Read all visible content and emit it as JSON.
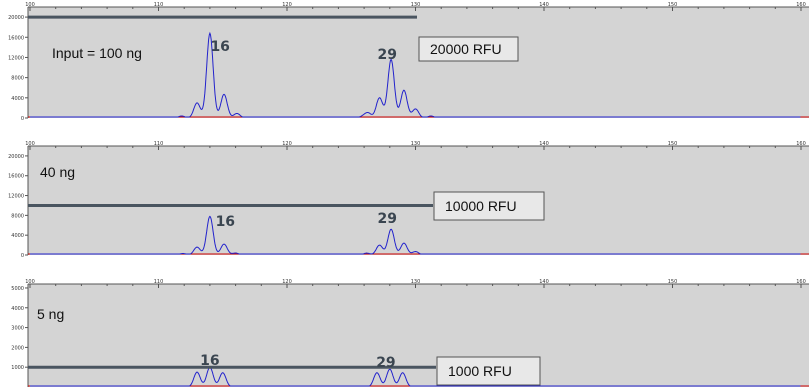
{
  "chart_data": [
    {
      "type": "line",
      "panel_label": "Input = 100 ng",
      "threshold_label": "20000 RFU",
      "threshold_value": 20000,
      "xlim": [
        100,
        160
      ],
      "ylim": [
        0,
        22000
      ],
      "x_ticks": [
        100,
        110,
        120,
        130,
        140,
        150,
        160
      ],
      "y_ticks": [
        0,
        4000,
        8000,
        12000,
        16000,
        20000
      ],
      "peak_labels": [
        {
          "text": "16",
          "x": 114.8
        },
        {
          "text": "29",
          "x": 127.8
        }
      ],
      "peaks": [
        {
          "x": 111.8,
          "y": 400
        },
        {
          "x": 113.0,
          "y": 3000
        },
        {
          "x": 114.0,
          "y": 16800
        },
        {
          "x": 115.1,
          "y": 4700
        },
        {
          "x": 116.1,
          "y": 900
        },
        {
          "x": 125.9,
          "y": 300
        },
        {
          "x": 126.3,
          "y": 1000
        },
        {
          "x": 127.2,
          "y": 4000
        },
        {
          "x": 128.1,
          "y": 11600
        },
        {
          "x": 129.1,
          "y": 5500
        },
        {
          "x": 130.0,
          "y": 1800
        },
        {
          "x": 131.2,
          "y": 400
        }
      ]
    },
    {
      "type": "line",
      "panel_label": "40 ng",
      "threshold_label": "10000 RFU",
      "threshold_value": 10000,
      "xlim": [
        100,
        160
      ],
      "ylim": [
        0,
        22000
      ],
      "x_ticks": [
        100,
        110,
        120,
        130,
        140,
        150,
        160
      ],
      "y_ticks": [
        0,
        4000,
        8000,
        12000,
        16000,
        20000
      ],
      "peak_labels": [
        {
          "text": "16",
          "x": 115.2
        },
        {
          "text": "29",
          "x": 127.8
        }
      ],
      "peaks": [
        {
          "x": 111.9,
          "y": 300
        },
        {
          "x": 113.0,
          "y": 1600
        },
        {
          "x": 114.0,
          "y": 7800
        },
        {
          "x": 115.1,
          "y": 2200
        },
        {
          "x": 116.0,
          "y": 400
        },
        {
          "x": 126.2,
          "y": 400
        },
        {
          "x": 127.2,
          "y": 2000
        },
        {
          "x": 128.1,
          "y": 5200
        },
        {
          "x": 129.1,
          "y": 2400
        },
        {
          "x": 130.0,
          "y": 700
        }
      ]
    },
    {
      "type": "line",
      "panel_label": "5 ng",
      "threshold_label": "1000 RFU",
      "threshold_value": 1000,
      "xlim": [
        100,
        160
      ],
      "ylim": [
        0,
        5200
      ],
      "x_ticks": [
        100,
        110,
        120,
        130,
        140,
        150,
        160
      ],
      "y_ticks": [
        1000,
        2000,
        3000,
        4000,
        5000
      ],
      "peak_labels": [
        {
          "text": "16",
          "x": 114.0
        },
        {
          "text": "29",
          "x": 127.7
        }
      ],
      "peaks": [
        {
          "x": 113.0,
          "y": 750
        },
        {
          "x": 114.0,
          "y": 1000
        },
        {
          "x": 115.0,
          "y": 720
        },
        {
          "x": 127.0,
          "y": 720
        },
        {
          "x": 128.0,
          "y": 900
        },
        {
          "x": 129.0,
          "y": 720
        }
      ]
    }
  ]
}
